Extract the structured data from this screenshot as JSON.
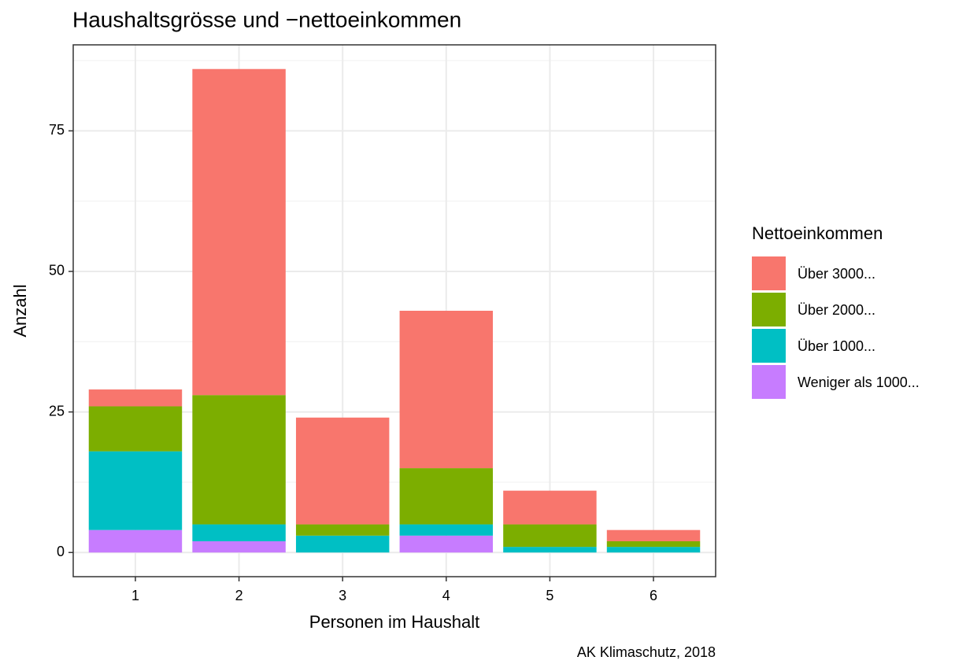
{
  "chart_data": {
    "type": "stacked_bar",
    "title": "Haushaltsgrösse und −nettoeinkommen",
    "x_label": "Personen im Haushalt",
    "y_label": "Anzahl",
    "caption": "AK Klimaschutz, 2018",
    "legend_title": "Nettoeinkommen",
    "categories": [
      "1",
      "2",
      "3",
      "4",
      "5",
      "6"
    ],
    "series": [
      {
        "name": "Über 3000...",
        "color": "#F8766D",
        "values": [
          3,
          58,
          19,
          28,
          6,
          2
        ]
      },
      {
        "name": "Über 2000...",
        "color": "#7CAE00",
        "values": [
          8,
          23,
          2,
          10,
          4,
          1
        ]
      },
      {
        "name": "Über 1000...",
        "color": "#00BFC4",
        "values": [
          14,
          3,
          3,
          2,
          1,
          1
        ]
      },
      {
        "name": "Weniger als 1000...",
        "color": "#C77CFF",
        "values": [
          4,
          2,
          0,
          3,
          0,
          0
        ]
      }
    ],
    "ylim": [
      -4.3,
      90.3
    ],
    "yticks": [
      0,
      25,
      50,
      75
    ],
    "grid": true,
    "legend": "right"
  }
}
